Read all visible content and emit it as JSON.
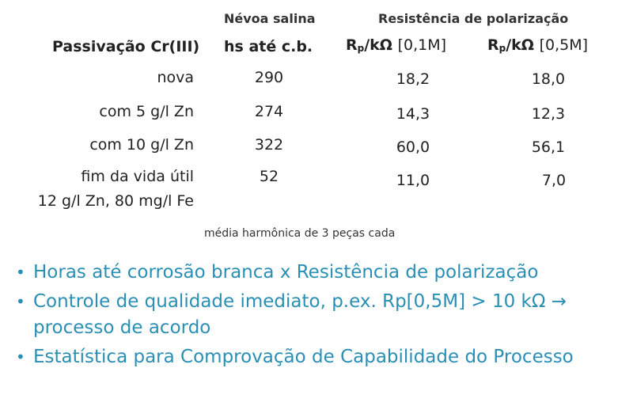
{
  "table": {
    "header": {
      "col1_top": "Névoa salina",
      "col23_top": "Resistência de polarização",
      "row_header": "Passivação Cr(III)",
      "col1": "hs até c.b.",
      "col2_main": "R",
      "col2_sub": "p",
      "col2_unit": "/kΩ",
      "col2_cond": "[0,1M]",
      "col3_main": "R",
      "col3_sub": "p",
      "col3_unit": "/kΩ",
      "col3_cond": "[0,5M]"
    },
    "rows": [
      {
        "label": "nova",
        "label2": "",
        "hs": "290",
        "rp01": "18,2",
        "rp05": "18,0"
      },
      {
        "label": "com 5 g/l Zn",
        "label2": "",
        "hs": "274",
        "rp01": "14,3",
        "rp05": "12,3"
      },
      {
        "label": "com 10 g/l Zn",
        "label2": "",
        "hs": "322",
        "rp01": "60,0",
        "rp05": "56,1"
      },
      {
        "label": "fim da vida útil",
        "label2": "12 g/l Zn, 80 mg/l Fe",
        "hs": "52",
        "rp01": "11,0",
        "rp05": "7,0"
      }
    ],
    "note": "média harmônica de 3 peças cada"
  },
  "bullets": [
    {
      "text": "Horas até corrosão branca x Resistência de polarização"
    },
    {
      "text": "Controle de qualidade imediato, p.ex. Rp[0,5M] > 10 kΩ → processo de acordo"
    },
    {
      "text": "Estatística para Comprovação de Capabilidade do Processo"
    }
  ],
  "colors": {
    "bullet_text": "#2a8fb5",
    "table_text": "#222222"
  }
}
